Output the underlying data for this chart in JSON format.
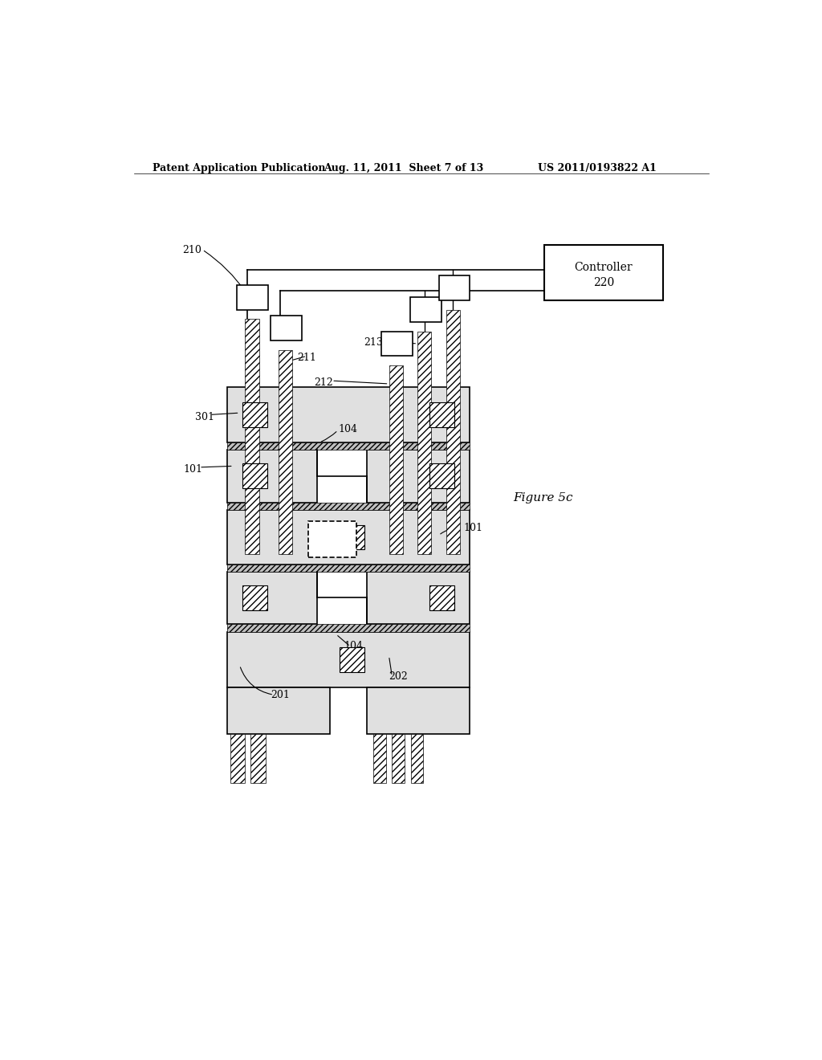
{
  "bg_color": "#ffffff",
  "header_left": "Patent Application Publication",
  "header_center": "Aug. 11, 2011  Sheet 7 of 13",
  "header_right": "US 2011/0193822 A1",
  "figure_label": "Figure 5c"
}
